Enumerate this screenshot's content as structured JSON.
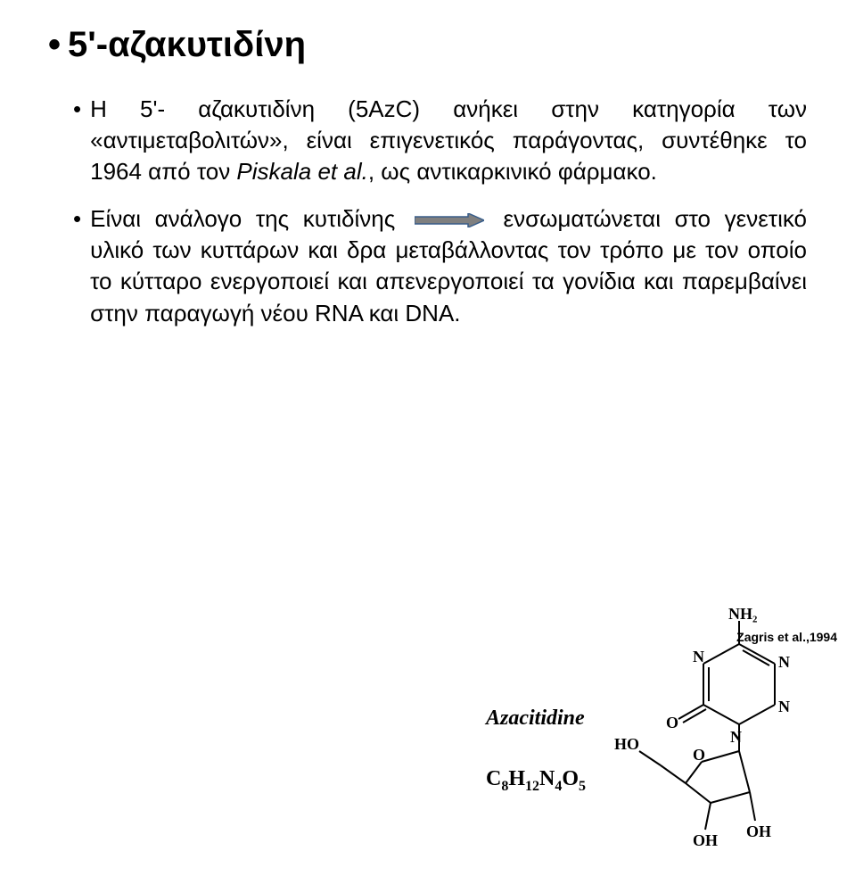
{
  "title": "5'-αζακυτιδίνη",
  "para1_before": "Η 5'- αζακυτιδίνη (5AzC) ανήκει στην κατηγορία των «αντιμεταβολιτών», είναι επιγενετικός παράγοντας, συντέθηκε το 1964 από τον ",
  "para1_italic": "Piskala et al.",
  "para1_after": ", ως αντικαρκινικό φάρμακο.",
  "para2_before": "Είναι ανάλογο της κυτιδίνης",
  "para2_after": "ενσωματώνεται στο γενετικό υλικό των κυττάρων και δρα μεταβάλλοντας τον τρόπο με τον οποίο το κύτταρο ενεργοποιεί και απενεργοποιεί τα γονίδια και παρεμβαίνει στην παραγωγή νέου RNA και DNA.",
  "chem_name": "Azacitidine",
  "chem_formula_parts": [
    "C",
    "8",
    "H",
    "12",
    "N",
    "4",
    "O",
    "5"
  ],
  "struct_labels": {
    "nh2": "NH₂",
    "n": "N",
    "o": "O",
    "ho": "HO",
    "oh": "OH"
  },
  "citation": "Zagris et al.,1994",
  "colors": {
    "text": "#000000",
    "bg": "#ffffff",
    "arrow_fill": "#7f7f7f",
    "arrow_stroke": "#385d8a",
    "struct_stroke": "#000000"
  },
  "arrow": {
    "w": 78,
    "h": 16
  }
}
